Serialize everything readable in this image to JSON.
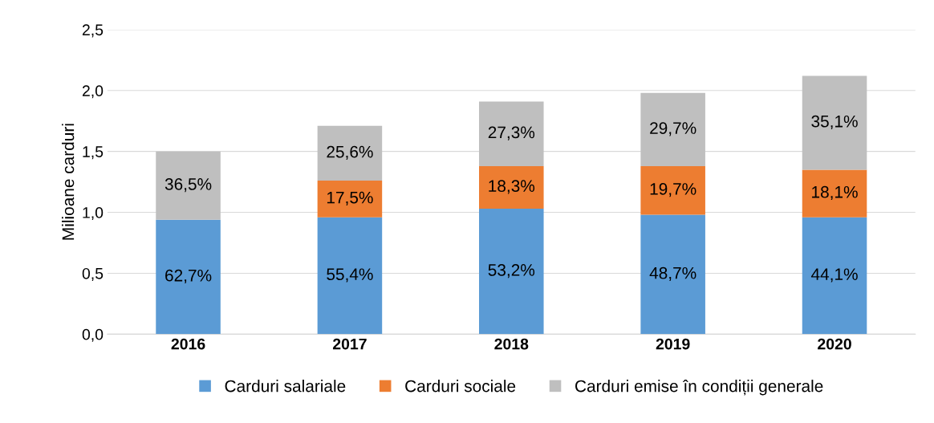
{
  "chart_data": {
    "type": "bar",
    "stacked": true,
    "ylabel": "Milioane carduri",
    "categories": [
      "2016",
      "2017",
      "2018",
      "2019",
      "2020"
    ],
    "series": [
      {
        "name": "Carduri salariale",
        "color": "#5b9bd5",
        "values": [
          0.94,
          0.96,
          1.03,
          0.98,
          0.96
        ]
      },
      {
        "name": "Carduri sociale",
        "color": "#ed7d31",
        "values": [
          null,
          0.3,
          0.35,
          0.4,
          0.39
        ]
      },
      {
        "name": "Carduri emise în condiții generale",
        "color": "#bfbfbf",
        "values": [
          0.56,
          0.45,
          0.53,
          0.6,
          0.77
        ]
      }
    ],
    "annotations": [
      "62,7%",
      "55,4%",
      "53,2%",
      "48,7%",
      "44,1%",
      "17,5%",
      "18,3%",
      "19,7%",
      "18,1%",
      "36,5%",
      "25,6%",
      "27,3%",
      "29,7%",
      "35,1%"
    ],
    "ylim": [
      0,
      2.5
    ],
    "yticks": [
      {
        "value": 0,
        "label": "0,0"
      },
      {
        "value": 0.5,
        "label": "0,5"
      },
      {
        "value": 1.0,
        "label": "1,0"
      },
      {
        "value": 1.5,
        "label": "1,5"
      },
      {
        "value": 2.0,
        "label": "2,0"
      },
      {
        "value": 2.5,
        "label": "2,5"
      }
    ],
    "grid": "y",
    "legend": "bottom"
  }
}
